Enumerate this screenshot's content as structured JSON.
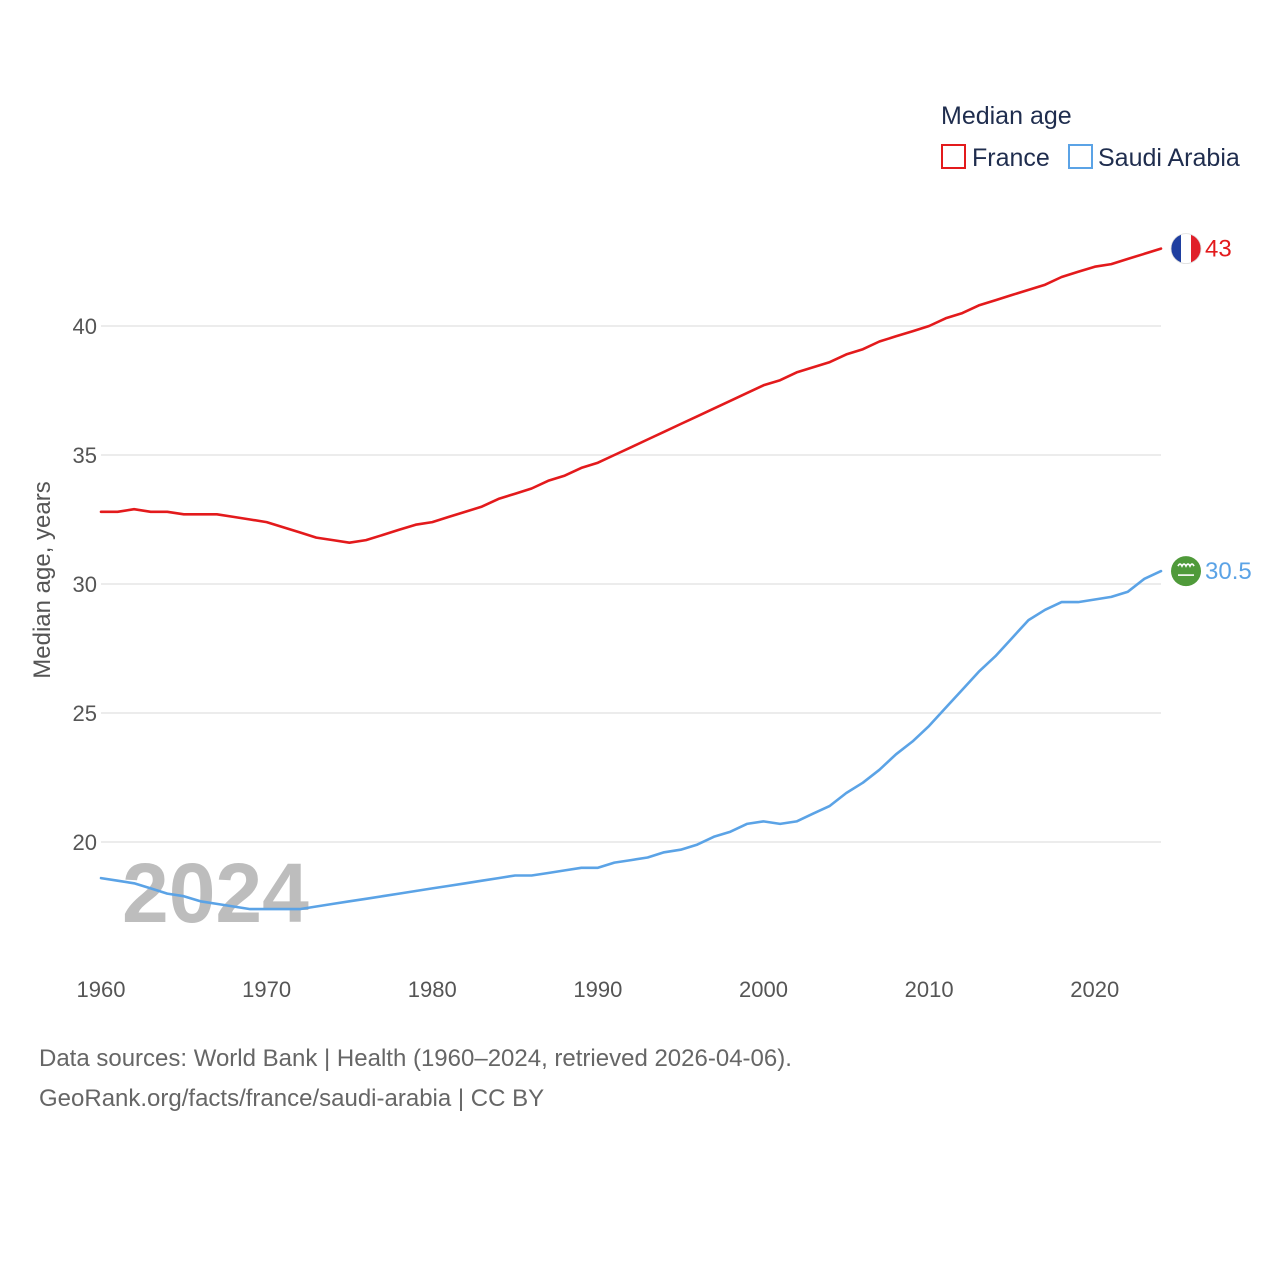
{
  "chart_data": {
    "type": "line",
    "title": "",
    "ylabel": "Median age, years",
    "xlabel": "",
    "xlim": [
      1960,
      2024
    ],
    "ylim": [
      16.5,
      45.5
    ],
    "yticks": [
      20,
      25,
      30,
      35,
      40
    ],
    "xticks": [
      1960,
      1970,
      1980,
      1990,
      2000,
      2010,
      2020
    ],
    "grid": true,
    "legend": {
      "title": "Median age",
      "placement": "top-right"
    },
    "watermark_year": "2024",
    "x": [
      1960,
      1961,
      1962,
      1963,
      1964,
      1965,
      1966,
      1967,
      1968,
      1969,
      1970,
      1971,
      1972,
      1973,
      1974,
      1975,
      1976,
      1977,
      1978,
      1979,
      1980,
      1981,
      1982,
      1983,
      1984,
      1985,
      1986,
      1987,
      1988,
      1989,
      1990,
      1991,
      1992,
      1993,
      1994,
      1995,
      1996,
      1997,
      1998,
      1999,
      2000,
      2001,
      2002,
      2003,
      2004,
      2005,
      2006,
      2007,
      2008,
      2009,
      2010,
      2011,
      2012,
      2013,
      2014,
      2015,
      2016,
      2017,
      2018,
      2019,
      2020,
      2021,
      2022,
      2023,
      2024
    ],
    "series": [
      {
        "name": "France",
        "color": "#e31a1c",
        "end_label": "43",
        "flag": "france-flag",
        "values": [
          32.8,
          32.8,
          32.9,
          32.8,
          32.8,
          32.7,
          32.7,
          32.7,
          32.6,
          32.5,
          32.4,
          32.2,
          32.0,
          31.8,
          31.7,
          31.6,
          31.7,
          31.9,
          32.1,
          32.3,
          32.4,
          32.6,
          32.8,
          33.0,
          33.3,
          33.5,
          33.7,
          34.0,
          34.2,
          34.5,
          34.7,
          35.0,
          35.3,
          35.6,
          35.9,
          36.2,
          36.5,
          36.8,
          37.1,
          37.4,
          37.7,
          37.9,
          38.2,
          38.4,
          38.6,
          38.9,
          39.1,
          39.4,
          39.6,
          39.8,
          40.0,
          40.3,
          40.5,
          40.8,
          41.0,
          41.2,
          41.4,
          41.6,
          41.9,
          42.1,
          42.3,
          42.4,
          42.6,
          42.8,
          43.0
        ]
      },
      {
        "name": "Saudi Arabia",
        "color": "#5ba3e6",
        "end_label": "30.5",
        "flag": "saudi-arabia-flag",
        "values": [
          18.6,
          18.5,
          18.4,
          18.2,
          18.0,
          17.9,
          17.7,
          17.6,
          17.5,
          17.4,
          17.4,
          17.4,
          17.4,
          17.5,
          17.6,
          17.7,
          17.8,
          17.9,
          18.0,
          18.1,
          18.2,
          18.3,
          18.4,
          18.5,
          18.6,
          18.7,
          18.7,
          18.8,
          18.9,
          19.0,
          19.0,
          19.2,
          19.3,
          19.4,
          19.6,
          19.7,
          19.9,
          20.2,
          20.4,
          20.7,
          20.8,
          20.7,
          20.8,
          21.1,
          21.4,
          21.9,
          22.3,
          22.8,
          23.4,
          23.9,
          24.5,
          25.2,
          25.9,
          26.6,
          27.2,
          27.9,
          28.6,
          29.0,
          29.3,
          29.3,
          29.4,
          29.5,
          29.7,
          30.2,
          30.5
        ]
      }
    ]
  },
  "footer": {
    "sources": "Data sources: World Bank | Health (1960–2024, retrieved 2026-04-06).",
    "credit": "GeoRank.org/facts/france/saudi-arabia | CC BY"
  }
}
